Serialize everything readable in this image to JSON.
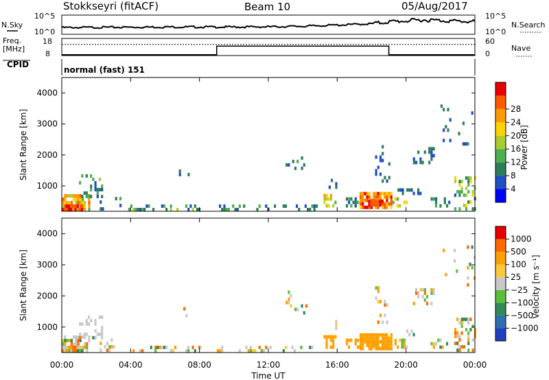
{
  "header": {
    "station": "Stokkseyri (fitACF)",
    "beam": "Beam 10",
    "date": "05/Aug/2017"
  },
  "panel_labels": {
    "nsky": "N.Sky",
    "nsearch": "N.Search",
    "freq": "Freq.",
    "freq_unit": "[MHz]",
    "nave": "Nave",
    "cpid": "CPID",
    "cpid_value": "normal (fast) 151"
  },
  "chart_data": [
    {
      "type": "line",
      "id": "noise",
      "ylabel_left": "N.Sky",
      "ylabel_right": "N.Search",
      "left_ticks": [
        "10^5",
        "10^0"
      ],
      "right_ticks": [
        "10^5",
        "10^0"
      ],
      "series": [
        {
          "values_hours": [
            0,
            2,
            4,
            6,
            8,
            10,
            12,
            14,
            16,
            18,
            19,
            20,
            21,
            22,
            23,
            24
          ],
          "level_frac": [
            0.35,
            0.36,
            0.37,
            0.38,
            0.38,
            0.38,
            0.39,
            0.42,
            0.48,
            0.55,
            0.65,
            0.7,
            0.75,
            0.72,
            0.68,
            0.66
          ]
        }
      ]
    },
    {
      "type": "line",
      "id": "freq_nave",
      "ylabel": "Freq. [MHz]",
      "left_ticks": [
        "18",
        "8"
      ],
      "right_ticks": [
        "60",
        "0"
      ],
      "freq_dotted_level_frac": 0.65,
      "nave_steps": [
        {
          "from_hour": 0,
          "to_hour": 9,
          "level_frac": 0.05
        },
        {
          "from_hour": 9,
          "to_hour": 19,
          "level_frac": 0.55
        },
        {
          "from_hour": 19,
          "to_hour": 24,
          "level_frac": 0.05
        }
      ]
    },
    {
      "type": "heatmap",
      "id": "power",
      "ylabel": "Slant Range [km]",
      "y_ticks": [
        "1000",
        "2000",
        "3000",
        "4000"
      ],
      "ylim": [
        180,
        4500
      ],
      "xlim_hours": [
        0,
        24
      ],
      "colorbar_label": "Power [dB]",
      "colorbar_ticks": [
        "4",
        "8",
        "12",
        "16",
        "20",
        "24",
        "28"
      ],
      "colors": [
        "#0000ff",
        "#1f4fc0",
        "#2e7d5a",
        "#4caf50",
        "#aacc33",
        "#ffd200",
        "#ff9a00",
        "#ff5a00",
        "#e60000"
      ]
    },
    {
      "type": "heatmap",
      "id": "velocity",
      "ylabel": "Slant Range [km]",
      "y_ticks": [
        "1000",
        "2000",
        "3000",
        "4000"
      ],
      "ylim": [
        180,
        4500
      ],
      "xlim_hours": [
        0,
        24
      ],
      "xlabel": "Time UT",
      "x_ticks": [
        "00:00",
        "04:00",
        "08:00",
        "12:00",
        "16:00",
        "20:00",
        "00:00"
      ],
      "colorbar_label": "Velocity [m s⁻¹]",
      "colorbar_ticks": [
        "1000",
        "500",
        "100",
        "25",
        "−25",
        "−100",
        "−500",
        "−1000"
      ],
      "colors": [
        "#1e40c0",
        "#2d6fb0",
        "#2e8b57",
        "#5cbf3a",
        "#c8c8c8",
        "#ffc83c",
        "#ffa000",
        "#ff6a00",
        "#e60000"
      ]
    }
  ]
}
